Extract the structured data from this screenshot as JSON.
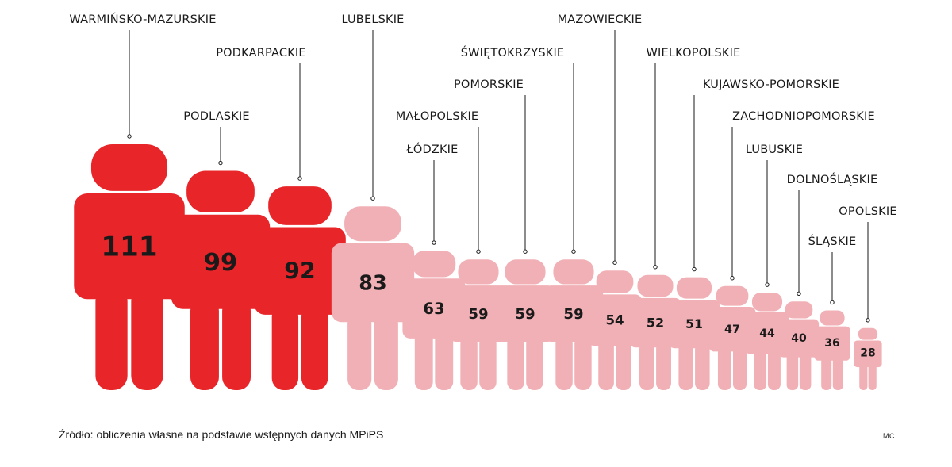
{
  "chart_data": {
    "type": "pictogram",
    "categories": [
      "WARMIŃSKO-MAZURSKIE",
      "PODLASKIE",
      "PODKARPACKIE",
      "LUBELSKIE",
      "ŁÓDZKIE",
      "MAŁOPOLSKIE",
      "POMORSKIE",
      "ŚWIĘTOKRZYSKIE",
      "MAZOWIECKIE",
      "WIELKOPOLSKIE",
      "KUJAWSKO-POMORSKIE",
      "ZACHODNIOPOMORSKIE",
      "LUBUSKIE",
      "DOLNOŚLĄSKIE",
      "ŚLĄSKIE",
      "OPOLSKIE"
    ],
    "values": [
      111,
      99,
      92,
      83,
      63,
      59,
      59,
      59,
      54,
      52,
      51,
      47,
      44,
      40,
      36,
      28
    ],
    "highlighted": [
      true,
      true,
      true,
      false,
      false,
      false,
      false,
      false,
      false,
      false,
      false,
      false,
      false,
      false,
      false,
      false
    ],
    "colors": {
      "highlight": "#e8262a",
      "normal": "#f1b0b5",
      "text": "#1a1a1a"
    }
  },
  "source": "Źródło: obliczenia własne na podstawie wstępnych danych MPiPS",
  "author": "MC"
}
